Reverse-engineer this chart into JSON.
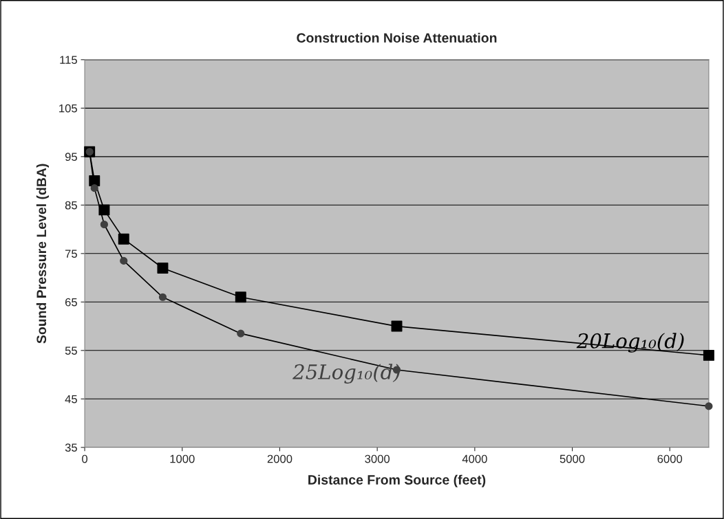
{
  "chart_data": {
    "type": "line",
    "title": "Construction Noise Attenuation",
    "xlabel": "Distance From Source (feet)",
    "ylabel": "Sound Pressure Level (dBA)",
    "x": [
      50,
      100,
      200,
      400,
      800,
      1600,
      3200,
      6400
    ],
    "series": [
      {
        "name": "20Log₁₀(d)",
        "color": "#000000",
        "marker": "square",
        "values": [
          96,
          90,
          84,
          78,
          72,
          66,
          60,
          54
        ]
      },
      {
        "name": "25Log₁₀(d)",
        "color": "#404040",
        "marker": "circle",
        "values": [
          96,
          88.5,
          81,
          73.5,
          66,
          58.5,
          51,
          43.5
        ]
      }
    ],
    "xlim": [
      0,
      6400
    ],
    "xticks": [
      0,
      1000,
      2000,
      3000,
      4000,
      5000,
      6000
    ],
    "ylim": [
      35,
      115
    ],
    "yticks": [
      35,
      45,
      55,
      65,
      75,
      85,
      95,
      105,
      115
    ],
    "grid": "y",
    "legend": false,
    "line_style": "solid"
  }
}
